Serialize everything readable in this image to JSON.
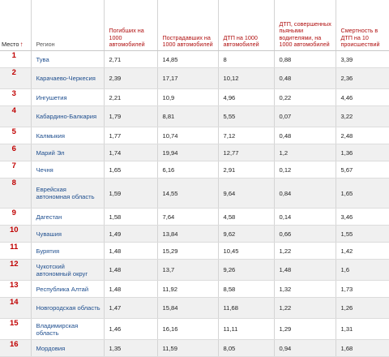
{
  "headers": {
    "place": "Место",
    "region": "Регион",
    "c1": "Погибших на 1000 автомобилей",
    "c2": "Пострадавших на 1000 автомобилей",
    "c3": "ДТП на 1000 автомобилей",
    "c4": "ДТП, совершенных пьяными водителями, на 1000 автомобилей",
    "c5": "Смертность в ДТП на 10 происшествий"
  },
  "sort_icon": "↑",
  "rows": [
    {
      "place": "1",
      "region": "Тува",
      "c1": "2,71",
      "c2": "14,85",
      "c3": "8",
      "c4": "0,88",
      "c5": "3,39"
    },
    {
      "place": "2",
      "region": "Карачаево-Черкесия",
      "c1": "2,39",
      "c2": "17,17",
      "c3": "10,12",
      "c4": "0,48",
      "c5": "2,36"
    },
    {
      "place": "3",
      "region": "Ингушетия",
      "c1": "2,21",
      "c2": "10,9",
      "c3": "4,96",
      "c4": "0,22",
      "c5": "4,46"
    },
    {
      "place": "4",
      "region": "Кабардино-Балкария",
      "c1": "1,79",
      "c2": "8,81",
      "c3": "5,55",
      "c4": "0,07",
      "c5": "3,22"
    },
    {
      "place": "5",
      "region": "Калмыкия",
      "c1": "1,77",
      "c2": "10,74",
      "c3": "7,12",
      "c4": "0,48",
      "c5": "2,48"
    },
    {
      "place": "6",
      "region": "Марий Эл",
      "c1": "1,74",
      "c2": "19,94",
      "c3": "12,77",
      "c4": "1,2",
      "c5": "1,36"
    },
    {
      "place": "7",
      "region": "Чечня",
      "c1": "1,65",
      "c2": "6,16",
      "c3": "2,91",
      "c4": "0,12",
      "c5": "5,67"
    },
    {
      "place": "8",
      "region": "Еврейская автономная область",
      "c1": "1,59",
      "c2": "14,55",
      "c3": "9,64",
      "c4": "0,84",
      "c5": "1,65"
    },
    {
      "place": "9",
      "region": "Дагестан",
      "c1": "1,58",
      "c2": "7,64",
      "c3": "4,58",
      "c4": "0,14",
      "c5": "3,46"
    },
    {
      "place": "10",
      "region": "Чувашия",
      "c1": "1,49",
      "c2": "13,84",
      "c3": "9,62",
      "c4": "0,66",
      "c5": "1,55"
    },
    {
      "place": "11",
      "region": "Бурятия",
      "c1": "1,48",
      "c2": "15,29",
      "c3": "10,45",
      "c4": "1,22",
      "c5": "1,42"
    },
    {
      "place": "12",
      "region": "Чукотский автономный округ",
      "c1": "1,48",
      "c2": "13,7",
      "c3": "9,26",
      "c4": "1,48",
      "c5": "1,6"
    },
    {
      "place": "13",
      "region": "Республика Алтай",
      "c1": "1,48",
      "c2": "11,92",
      "c3": "8,58",
      "c4": "1,32",
      "c5": "1,73"
    },
    {
      "place": "14",
      "region": "Новгородская область",
      "c1": "1,47",
      "c2": "15,84",
      "c3": "11,68",
      "c4": "1,22",
      "c5": "1,26"
    },
    {
      "place": "15",
      "region": "Владимирская область",
      "c1": "1,46",
      "c2": "16,16",
      "c3": "11,11",
      "c4": "1,29",
      "c5": "1,31"
    },
    {
      "place": "16",
      "region": "Мордовия",
      "c1": "1,35",
      "c2": "11,59",
      "c3": "8,05",
      "c4": "0,94",
      "c5": "1,68"
    }
  ]
}
